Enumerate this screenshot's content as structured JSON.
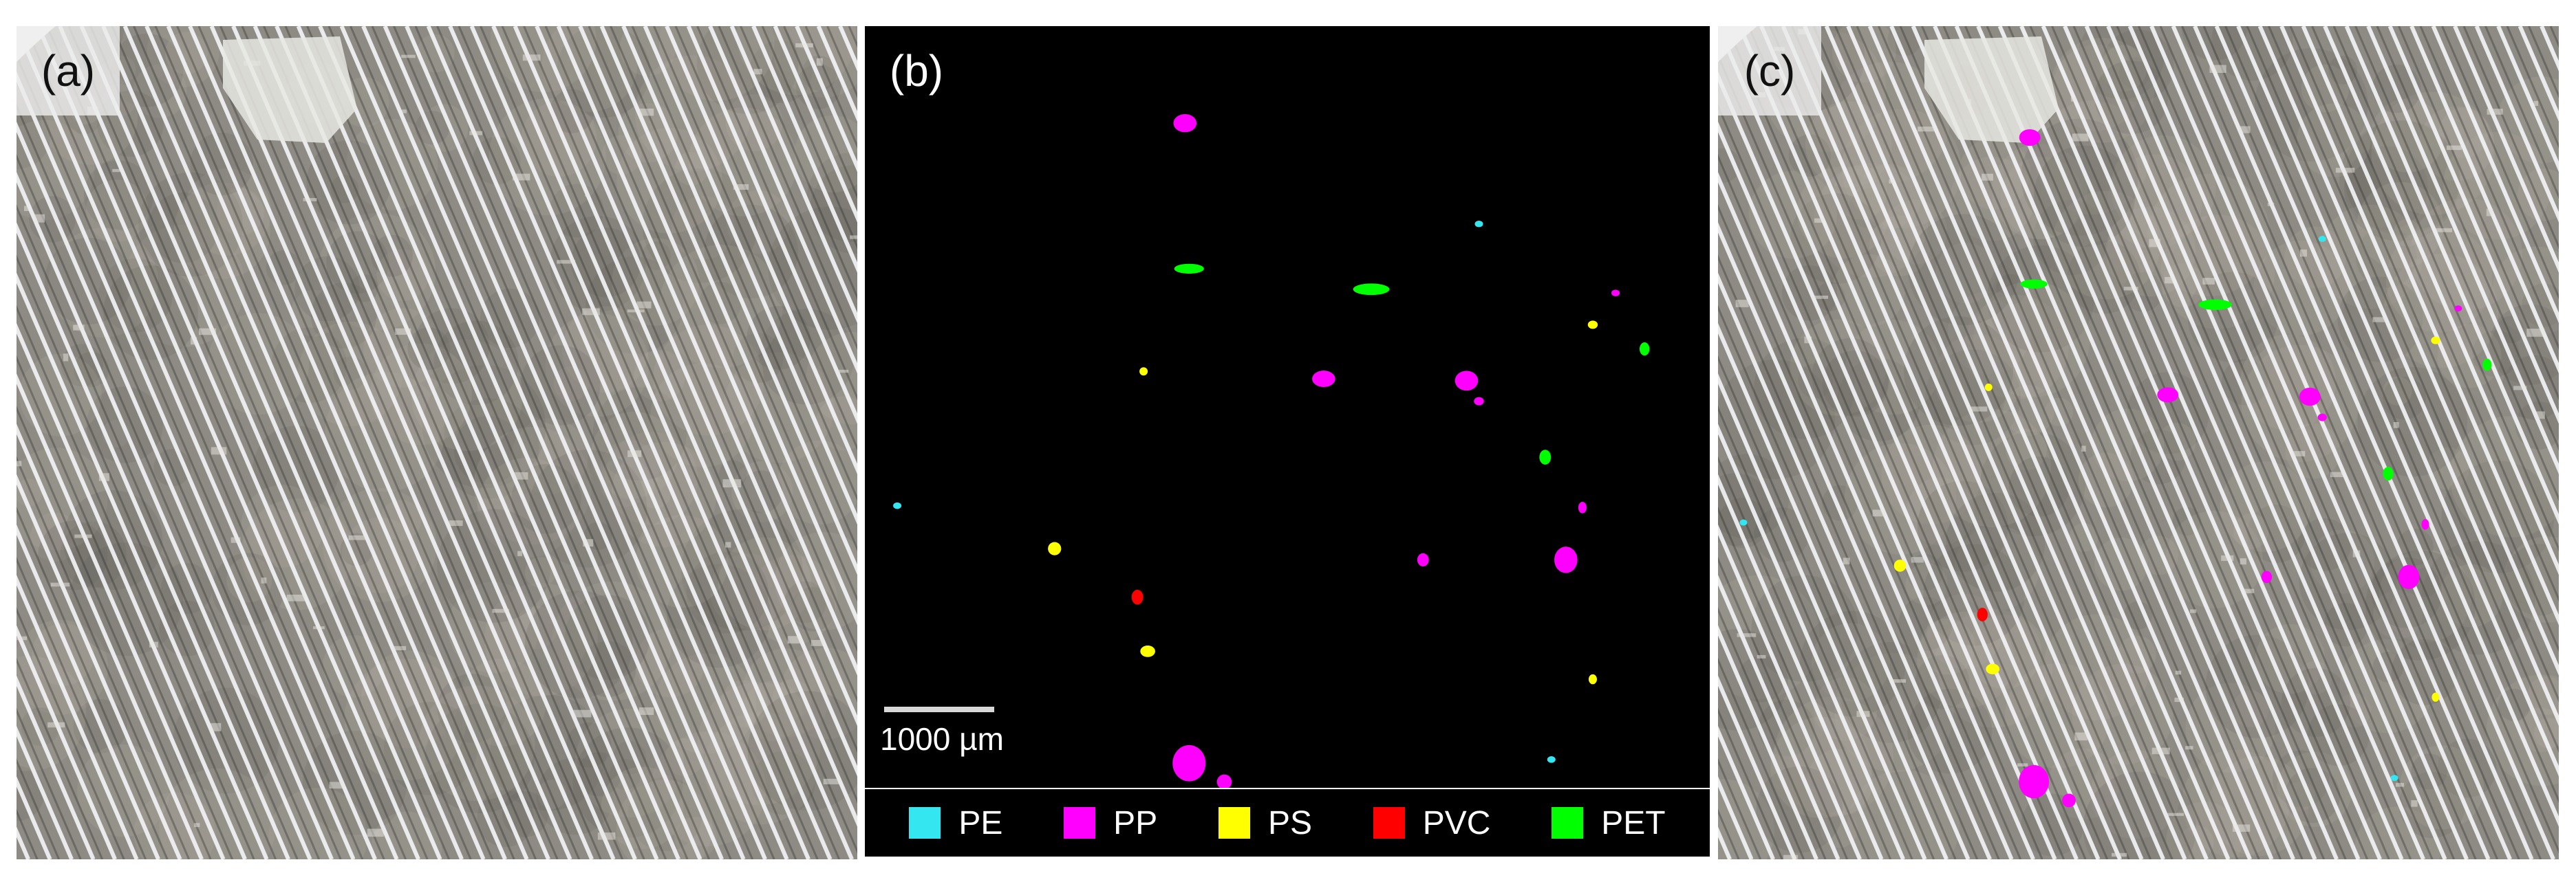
{
  "panels": {
    "a": {
      "label": "(a)"
    },
    "b": {
      "label": "(b)",
      "scale_bar_label": "1000 µm"
    },
    "c": {
      "label": "(c)"
    }
  },
  "legend": [
    {
      "label": "PE",
      "color": "#33e6f0"
    },
    {
      "label": "PP",
      "color": "#ff00ff"
    },
    {
      "label": "PS",
      "color": "#ffff00"
    },
    {
      "label": "PVC",
      "color": "#ff0000"
    },
    {
      "label": "PET",
      "color": "#00ff00"
    }
  ],
  "colors": {
    "filter_base": "#8e8b84",
    "grid_line": "#f2f3f6",
    "background": "#000000"
  }
}
